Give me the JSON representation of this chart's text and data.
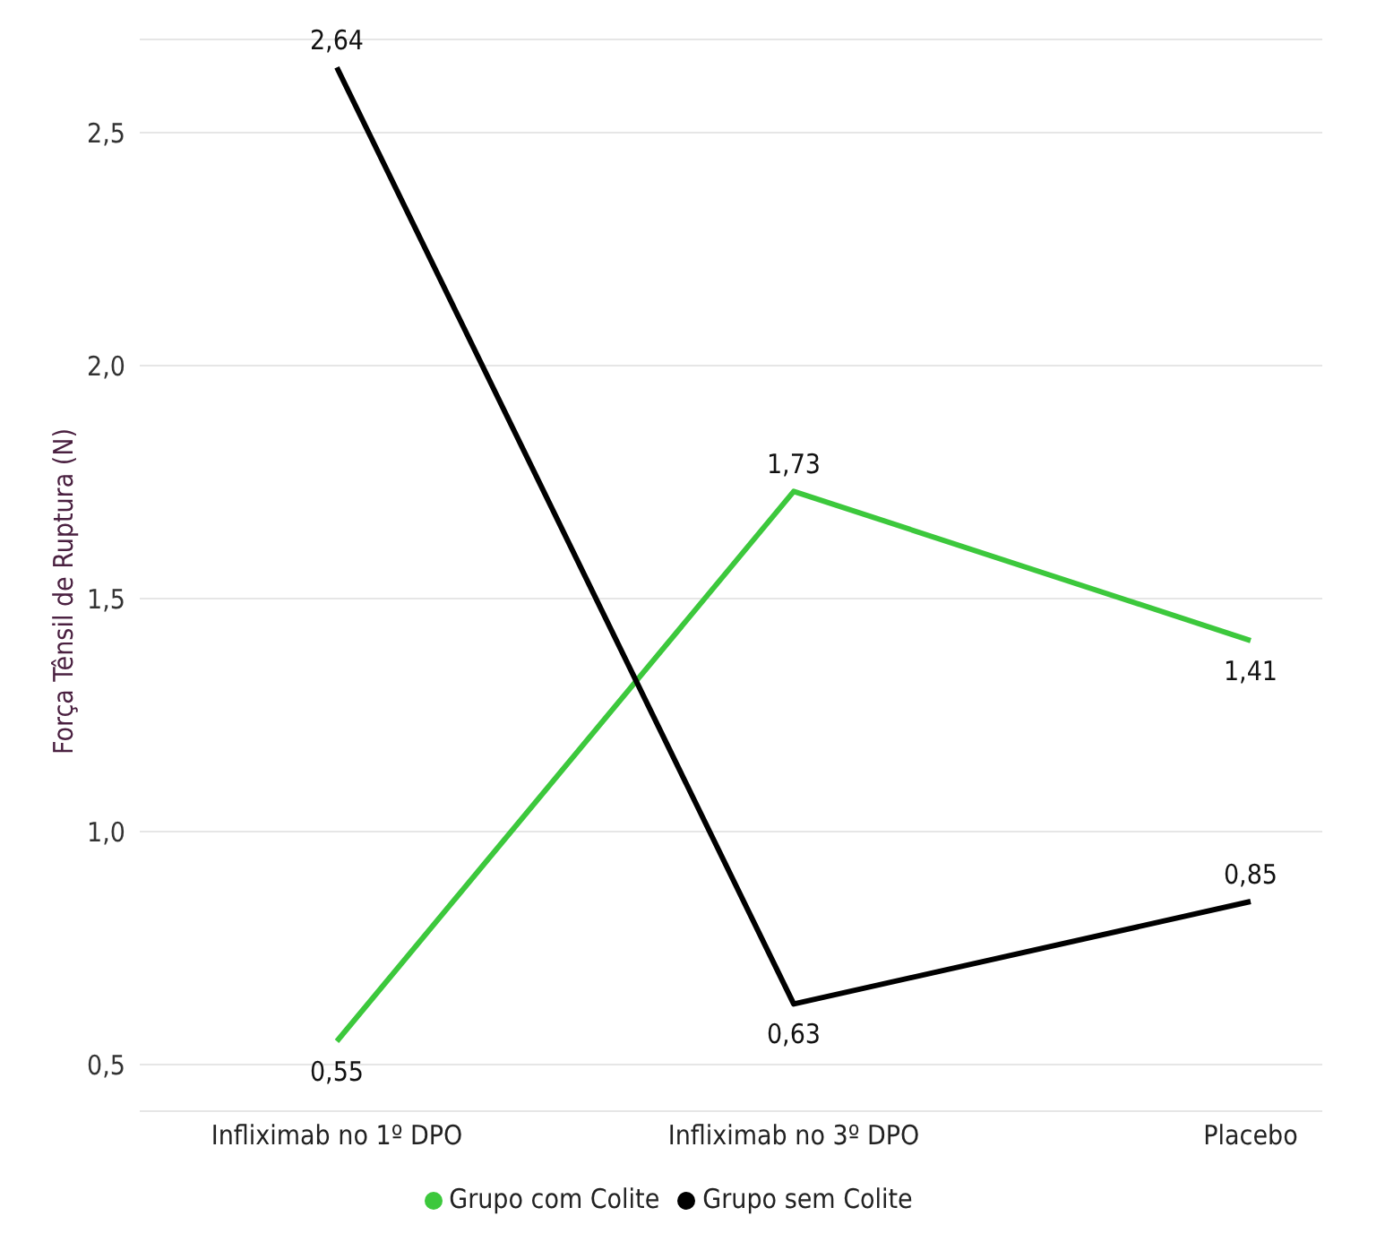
{
  "chart_data": {
    "type": "line",
    "ylabel": "Força Tênsil de Ruptura (N)",
    "categories": [
      "Infliximab no 1º DPO",
      "Infliximab no 3º DPO",
      "Placebo"
    ],
    "series": [
      {
        "name": "Grupo com Colite",
        "color": "#3cc83c",
        "values": [
          0.55,
          1.73,
          1.41
        ],
        "value_labels": [
          "0,55",
          "1,73",
          "1,41"
        ]
      },
      {
        "name": "Grupo sem Colite",
        "color": "#000000",
        "values": [
          2.64,
          0.63,
          0.85
        ],
        "value_labels": [
          "2,64",
          "0,63",
          "0,85"
        ]
      }
    ],
    "ylim": [
      0.4,
      2.7
    ],
    "yticks": [
      {
        "value": 0.5,
        "label": "0,5"
      },
      {
        "value": 1.0,
        "label": "1,0"
      },
      {
        "value": 1.5,
        "label": "1,5"
      },
      {
        "value": 2.0,
        "label": "2,0"
      },
      {
        "value": 2.5,
        "label": "2,5"
      }
    ],
    "grid": "y",
    "legend": "bottom",
    "marker": "none",
    "line_style": "solid"
  }
}
